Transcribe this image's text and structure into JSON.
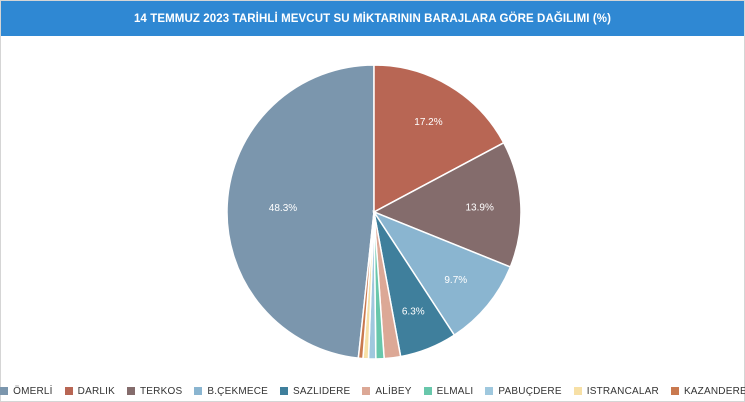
{
  "chart_data": {
    "type": "pie",
    "title": "14 TEMMUZ 2023 TARİHLİ MEVCUT SU MİKTARININ BARAJLARA GÖRE DAĞILIMI (%)",
    "legend_position": "bottom",
    "slices": [
      {
        "name": "ÖMERLİ",
        "value": 48.3,
        "color": "#7b96ad",
        "label": "48.3%"
      },
      {
        "name": "DARLIK",
        "value": 17.2,
        "color": "#b86654",
        "label": "17.2%"
      },
      {
        "name": "TERKOS",
        "value": 13.9,
        "color": "#846c6c",
        "label": "13.9%"
      },
      {
        "name": "B.ÇEKMECE",
        "value": 9.7,
        "color": "#8ab5d0",
        "label": "9.7%"
      },
      {
        "name": "SAZLIDERE",
        "value": 6.3,
        "color": "#3f7f9c",
        "label": "6.3%"
      },
      {
        "name": "ALİBEY",
        "value": 1.8,
        "color": "#dca896",
        "label": ""
      },
      {
        "name": "ELMALI",
        "value": 0.9,
        "color": "#68c7ab",
        "label": ""
      },
      {
        "name": "PABUÇDERE",
        "value": 0.8,
        "color": "#9fc8de",
        "label": ""
      },
      {
        "name": "ISTRANCALAR",
        "value": 0.6,
        "color": "#f7e0a6",
        "label": ""
      },
      {
        "name": "KAZANDERE",
        "value": 0.5,
        "color": "#c9794f",
        "label": ""
      }
    ]
  }
}
